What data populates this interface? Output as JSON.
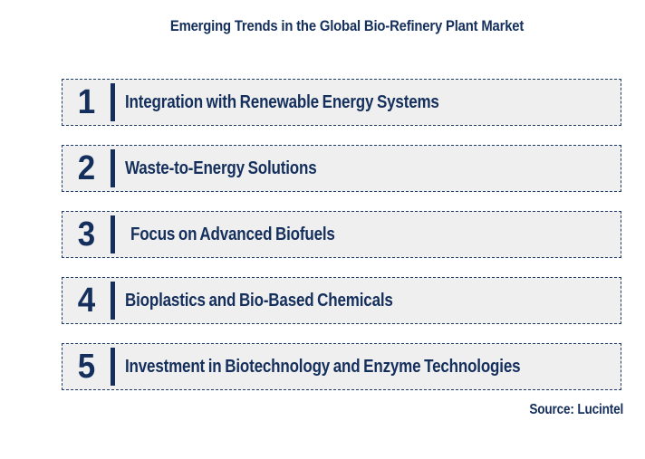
{
  "title": "Emerging Trends in the Global Bio-Refinery Plant Market",
  "trends": [
    {
      "number": "1",
      "label": "Integration with Renewable Energy Systems"
    },
    {
      "number": "2",
      "label": "Waste-to-Energy Solutions"
    },
    {
      "number": "3",
      "label": "Focus on Advanced Biofuels"
    },
    {
      "number": "4",
      "label": "Bioplastics and Bio-Based Chemicals"
    },
    {
      "number": "5",
      "label": "Investment in Biotechnology and Enzyme Technologies"
    }
  ],
  "source": "Source: Lucintel",
  "colors": {
    "accent_navy": "#142f5c",
    "border_navy": "#1e3a66",
    "box_fill": "#efefef",
    "background": "#ffffff"
  }
}
